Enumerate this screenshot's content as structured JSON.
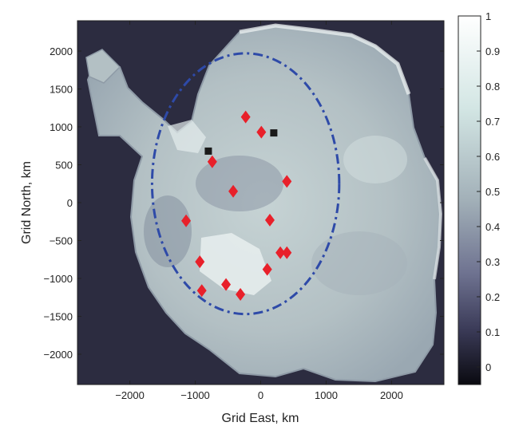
{
  "map": {
    "x_axis": {
      "label": "Grid East, km",
      "range": [
        -2800,
        2800
      ],
      "ticks": [
        -2000,
        -1000,
        0,
        1000,
        2000
      ],
      "tick_labels": [
        "−2000",
        "−1000",
        "0",
        "1000",
        "2000"
      ]
    },
    "y_axis": {
      "label": "Grid North, km",
      "range": [
        -2400,
        2400
      ],
      "ticks": [
        2000,
        1500,
        1000,
        500,
        0,
        -500,
        -1000,
        -1500,
        -2000
      ],
      "tick_labels": [
        "2000",
        "1500",
        "1000",
        "500",
        "0",
        "−500",
        "−1000",
        "−1500",
        "−2000"
      ]
    },
    "colorbar": {
      "range": [
        -0.05,
        1.0
      ],
      "ticks": [
        0,
        0.1,
        0.2,
        0.3,
        0.4,
        0.5,
        0.6,
        0.7,
        0.8,
        0.9,
        1
      ],
      "tick_labels": [
        "0",
        "0.1",
        "0.2",
        "0.3",
        "0.4",
        "0.5",
        "0.6",
        "0.7",
        "0.8",
        "0.9",
        "1"
      ],
      "colors": [
        "#0a0a10",
        "#3b3b58",
        "#6e7290",
        "#a2b0b8",
        "#d3e6e4",
        "#ffffff"
      ]
    },
    "colors": {
      "ocean": "#2c2c40",
      "ice_base": "#b9c5c8",
      "marker": "#e8202a",
      "square": "#1a1a1a",
      "ellipse": "#2e4aa8"
    },
    "diamond_markers": [
      {
        "x": -230,
        "y": 1130
      },
      {
        "x": 10,
        "y": 930
      },
      {
        "x": -740,
        "y": 540
      },
      {
        "x": -420,
        "y": 150
      },
      {
        "x": 400,
        "y": 280
      },
      {
        "x": -1140,
        "y": -240
      },
      {
        "x": 140,
        "y": -230
      },
      {
        "x": 300,
        "y": -660
      },
      {
        "x": 400,
        "y": -660
      },
      {
        "x": -930,
        "y": -780
      },
      {
        "x": 100,
        "y": -880
      },
      {
        "x": -530,
        "y": -1080
      },
      {
        "x": -900,
        "y": -1160
      },
      {
        "x": -310,
        "y": -1210
      }
    ],
    "square_markers": [
      {
        "x": 200,
        "y": 920
      },
      {
        "x": -800,
        "y": 680
      }
    ],
    "ellipse": {
      "cx": -230,
      "cy": 250,
      "rx": 1430,
      "ry": 1720
    }
  }
}
